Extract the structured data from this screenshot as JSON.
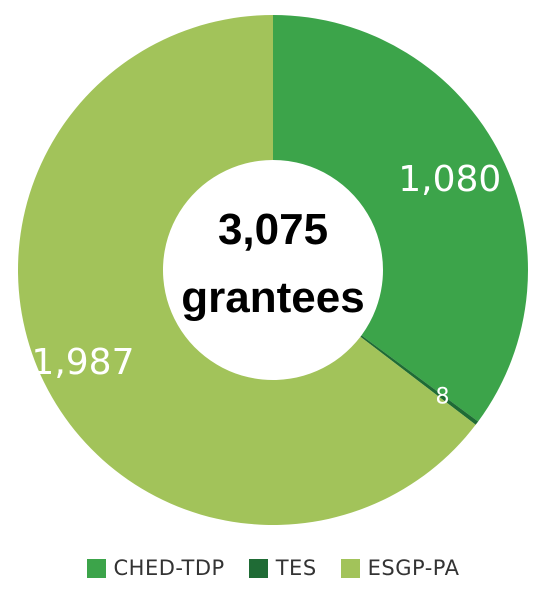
{
  "chart_data": {
    "type": "pie",
    "donut": true,
    "center_text": [
      "3,075",
      "grantees"
    ],
    "slices": [
      {
        "name": "CHED-TDP",
        "value": 1080,
        "label": "1,080",
        "color": "#3ca44a"
      },
      {
        "name": "TES",
        "value": 8,
        "label": "8",
        "color": "#1f6b35"
      },
      {
        "name": "ESGP-PA",
        "value": 1987,
        "label": "1,987",
        "color": "#a2c35a"
      }
    ],
    "legend": {
      "placement": "bottom",
      "entries": [
        "CHED-TDP",
        "TES",
        "ESGP-PA"
      ]
    }
  }
}
